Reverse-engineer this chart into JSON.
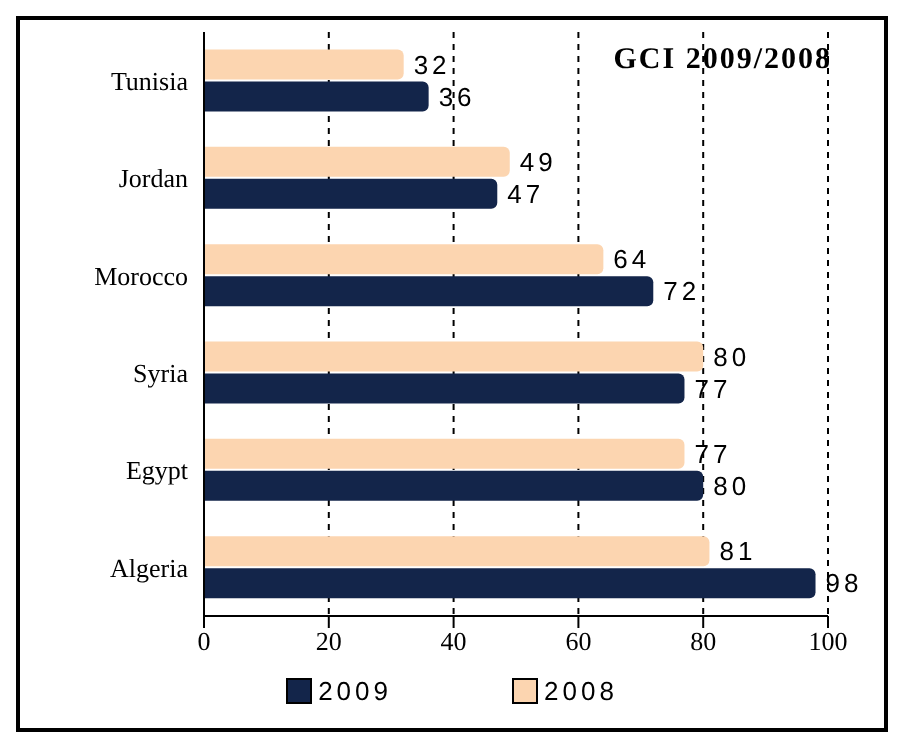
{
  "chart_data": {
    "type": "bar",
    "orientation": "horizontal",
    "title": "GCI 2009/2008",
    "categories": [
      "Tunisia",
      "Jordan",
      "Morocco",
      "Syria",
      "Egypt",
      "Algeria"
    ],
    "series": [
      {
        "name": "2009",
        "color": "#13254a",
        "values": [
          36,
          47,
          72,
          77,
          80,
          98
        ]
      },
      {
        "name": "2008",
        "color": "#fcd5b0",
        "values": [
          32,
          49,
          64,
          80,
          77,
          81
        ]
      }
    ],
    "xlim": [
      0,
      100
    ],
    "xticks": [
      0,
      20,
      40,
      60,
      80,
      100
    ],
    "grid": "x",
    "data_labels": true,
    "legend": "bottom"
  }
}
